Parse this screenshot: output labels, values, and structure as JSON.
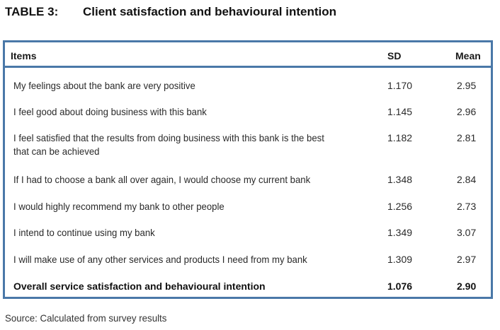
{
  "caption": {
    "number": "TABLE 3:",
    "title": "Client satisfaction and behavioural intention"
  },
  "table": {
    "headers": {
      "items": "Items",
      "sd": "SD",
      "mean": "Mean"
    },
    "rows": [
      {
        "item": "My feelings about the bank are very positive",
        "sd": "1.170",
        "mean": "2.95"
      },
      {
        "item": "I feel good about doing business with this bank",
        "sd": "1.145",
        "mean": "2.96"
      },
      {
        "item": "I feel satisfied that the results from doing business with this bank is the best that can be achieved",
        "sd": "1.182",
        "mean": "2.81"
      },
      {
        "item": "If I had to choose a bank all over again, I would choose my current bank",
        "sd": "1.348",
        "mean": "2.84"
      },
      {
        "item": "I would highly recommend my bank to other people",
        "sd": "1.256",
        "mean": "2.73"
      },
      {
        "item": "I intend to continue using my bank",
        "sd": "1.349",
        "mean": "3.07"
      },
      {
        "item": "I will make use of any other services and products I need from my bank",
        "sd": "1.309",
        "mean": "2.97"
      }
    ],
    "total": {
      "item": "Overall service satisfaction and behavioural intention",
      "sd": "1.076",
      "mean": "2.90"
    }
  },
  "source": "Source: Calculated from survey results"
}
